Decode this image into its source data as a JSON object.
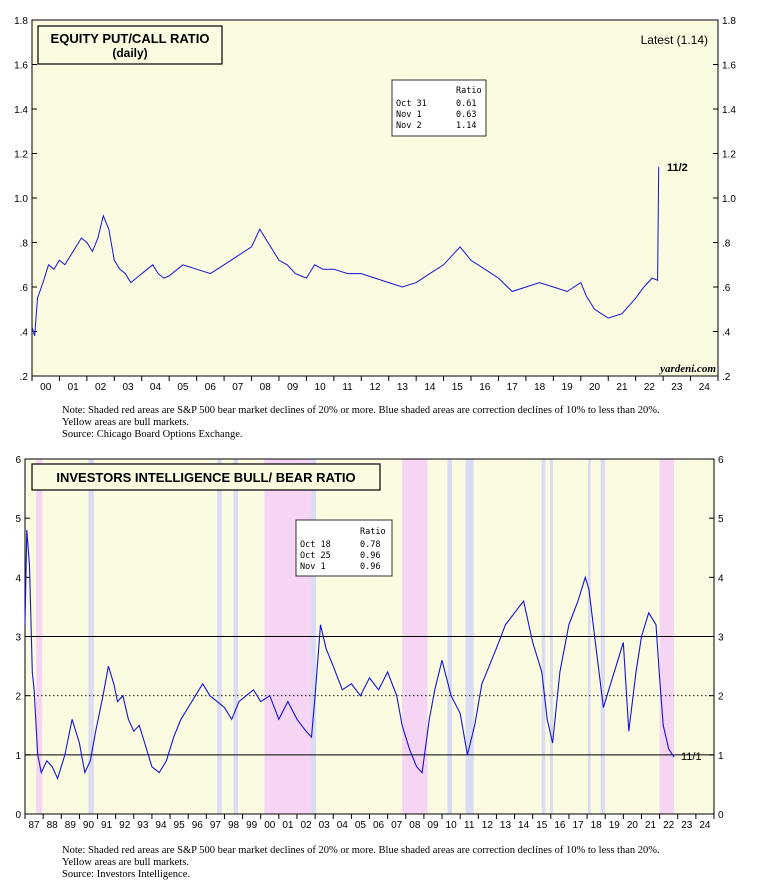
{
  "chart_data": [
    {
      "type": "line",
      "title": "EQUITY PUT/CALL RATIO",
      "subtitle": "(daily)",
      "latest_label": "Latest (1.14)",
      "end_annotation": "11/2",
      "source_credit": "yardeni.com",
      "x_tick_labels": [
        "00",
        "01",
        "02",
        "03",
        "04",
        "05",
        "06",
        "07",
        "08",
        "09",
        "10",
        "11",
        "12",
        "13",
        "14",
        "15",
        "16",
        "17",
        "18",
        "19",
        "20",
        "21",
        "22",
        "23",
        "24"
      ],
      "x_range": [
        2000.0,
        2025.0
      ],
      "y_ticks": [
        0.2,
        0.4,
        0.6,
        0.8,
        1.0,
        1.2,
        1.4,
        1.6,
        1.8
      ],
      "y_tick_labels": [
        ".2",
        ".4",
        ".6",
        ".8",
        "1.0",
        "1.2",
        "1.4",
        "1.6",
        "1.8"
      ],
      "ylim": [
        0.2,
        1.8
      ],
      "background_color": "#fbfbe1",
      "line_color": "#1414d6",
      "series": [
        {
          "x": [
            2000.0,
            2000.1,
            2000.2,
            2000.4,
            2000.6,
            2000.8,
            2001.0,
            2001.2,
            2001.4,
            2001.6,
            2001.8,
            2002.0,
            2002.2,
            2002.4,
            2002.6,
            2002.8,
            2003.0,
            2003.2,
            2003.4,
            2003.6,
            2003.8,
            2004.0,
            2004.2,
            2004.4,
            2004.6,
            2004.8,
            2005.0,
            2005.5,
            2006.0,
            2006.5,
            2007.0,
            2007.5,
            2008.0,
            2008.3,
            2008.6,
            2008.8,
            2009.0,
            2009.3,
            2009.6,
            2010.0,
            2010.3,
            2010.6,
            2011.0,
            2011.5,
            2012.0,
            2012.5,
            2013.0,
            2013.5,
            2014.0,
            2014.5,
            2015.0,
            2015.3,
            2015.6,
            2016.0,
            2016.5,
            2017.0,
            2017.5,
            2018.0,
            2018.5,
            2019.0,
            2019.5,
            2020.0,
            2020.2,
            2020.5,
            2021.0,
            2021.5,
            2022.0,
            2022.3,
            2022.6,
            2022.8,
            2022.84
          ],
          "y": [
            0.42,
            0.38,
            0.55,
            0.62,
            0.7,
            0.68,
            0.72,
            0.7,
            0.74,
            0.78,
            0.82,
            0.8,
            0.76,
            0.82,
            0.92,
            0.86,
            0.72,
            0.68,
            0.66,
            0.62,
            0.64,
            0.66,
            0.68,
            0.7,
            0.66,
            0.64,
            0.65,
            0.7,
            0.68,
            0.66,
            0.7,
            0.74,
            0.78,
            0.86,
            0.8,
            0.76,
            0.72,
            0.7,
            0.66,
            0.64,
            0.7,
            0.68,
            0.68,
            0.66,
            0.66,
            0.64,
            0.62,
            0.6,
            0.62,
            0.66,
            0.7,
            0.74,
            0.78,
            0.72,
            0.68,
            0.64,
            0.58,
            0.6,
            0.62,
            0.6,
            0.58,
            0.62,
            0.56,
            0.5,
            0.46,
            0.48,
            0.55,
            0.6,
            0.64,
            0.63,
            1.14
          ]
        }
      ],
      "inset_table": {
        "header": "Ratio",
        "rows": [
          {
            "date": "Oct 31",
            "value": "0.61"
          },
          {
            "date": "Nov  1",
            "value": "0.63"
          },
          {
            "date": "Nov  2",
            "value": "1.14"
          }
        ]
      },
      "notes": [
        "Note: Shaded red areas are S&P 500 bear market declines of 20% or more.  Blue shaded areas are correction declines of 10% to less than 20%.",
        "Yellow areas are bull markets.",
        "Source: Chicago Board Options Exchange."
      ]
    },
    {
      "type": "line",
      "title": "INVESTORS INTELLIGENCE BULL/ BEAR RATIO",
      "end_annotation": "11/1",
      "x_tick_labels": [
        "87",
        "88",
        "89",
        "90",
        "91",
        "92",
        "93",
        "94",
        "95",
        "96",
        "97",
        "98",
        "99",
        "00",
        "01",
        "02",
        "03",
        "04",
        "05",
        "06",
        "07",
        "08",
        "09",
        "10",
        "11",
        "12",
        "13",
        "14",
        "15",
        "16",
        "17",
        "18",
        "19",
        "20",
        "21",
        "22",
        "23",
        "24"
      ],
      "x_range": [
        1987.0,
        2025.0
      ],
      "y_ticks": [
        0,
        1,
        2,
        3,
        4,
        5,
        6
      ],
      "y_tick_labels": [
        "0",
        "1",
        "2",
        "3",
        "4",
        "5",
        "6"
      ],
      "ylim": [
        0,
        6
      ],
      "solid_ref_lines": [
        1,
        3
      ],
      "dotted_ref_lines": [
        2
      ],
      "background_color": "#fbfbe1",
      "line_color": "#1414d6",
      "bear_shading_color": "#f5d5f3",
      "correction_shading_color": "#d9dcf2",
      "bear_periods": [
        [
          1987.62,
          1987.95
        ],
        [
          2000.2,
          2002.78
        ],
        [
          2007.8,
          2009.2
        ],
        [
          2022.0,
          2022.8
        ]
      ],
      "correction_periods": [
        [
          1990.5,
          1990.8
        ],
        [
          1997.6,
          1997.85
        ],
        [
          1998.5,
          1998.75
        ],
        [
          2002.78,
          2003.05
        ],
        [
          2010.3,
          2010.55
        ],
        [
          2011.3,
          2011.75
        ],
        [
          2015.5,
          2015.7
        ],
        [
          2015.95,
          2016.12
        ],
        [
          2018.05,
          2018.2
        ],
        [
          2018.75,
          2018.98
        ]
      ],
      "series": [
        {
          "x": [
            1987.0,
            1987.1,
            1987.25,
            1987.4,
            1987.5,
            1987.7,
            1987.9,
            1988.2,
            1988.5,
            1988.8,
            1989.2,
            1989.6,
            1990.0,
            1990.3,
            1990.6,
            1990.9,
            1991.3,
            1991.6,
            1991.9,
            1992.1,
            1992.4,
            1992.7,
            1993.0,
            1993.3,
            1993.6,
            1994.0,
            1994.4,
            1994.8,
            1995.2,
            1995.6,
            1996.0,
            1996.4,
            1996.8,
            1997.2,
            1997.6,
            1998.0,
            1998.4,
            1998.8,
            1999.2,
            1999.6,
            2000.0,
            2000.5,
            2001.0,
            2001.5,
            2002.0,
            2002.5,
            2002.8,
            2003.0,
            2003.3,
            2003.6,
            2004.0,
            2004.5,
            2005.0,
            2005.5,
            2006.0,
            2006.5,
            2007.0,
            2007.5,
            2007.8,
            2008.2,
            2008.6,
            2008.9,
            2009.3,
            2009.6,
            2010.0,
            2010.5,
            2011.0,
            2011.4,
            2011.8,
            2012.2,
            2012.6,
            2013.0,
            2013.5,
            2014.0,
            2014.5,
            2015.0,
            2015.5,
            2015.8,
            2016.1,
            2016.5,
            2017.0,
            2017.5,
            2017.9,
            2018.1,
            2018.5,
            2018.9,
            2019.3,
            2019.7,
            2020.0,
            2020.3,
            2020.7,
            2021.0,
            2021.4,
            2021.8,
            2022.0,
            2022.2,
            2022.5,
            2022.8
          ],
          "y": [
            3.2,
            4.8,
            4.2,
            2.4,
            2.1,
            1.0,
            0.7,
            0.9,
            0.8,
            0.6,
            1.0,
            1.6,
            1.2,
            0.7,
            0.9,
            1.4,
            2.0,
            2.5,
            2.2,
            1.9,
            2.0,
            1.6,
            1.4,
            1.5,
            1.2,
            0.8,
            0.7,
            0.9,
            1.3,
            1.6,
            1.8,
            2.0,
            2.2,
            2.0,
            1.9,
            1.8,
            1.6,
            1.9,
            2.0,
            2.1,
            1.9,
            2.0,
            1.6,
            1.9,
            1.6,
            1.4,
            1.3,
            2.0,
            3.2,
            2.8,
            2.5,
            2.1,
            2.2,
            2.0,
            2.3,
            2.1,
            2.4,
            2.0,
            1.5,
            1.1,
            0.8,
            0.7,
            1.6,
            2.1,
            2.6,
            2.0,
            1.7,
            1.0,
            1.5,
            2.2,
            2.5,
            2.8,
            3.2,
            3.4,
            3.6,
            2.9,
            2.4,
            1.6,
            1.2,
            2.4,
            3.2,
            3.6,
            4.0,
            3.8,
            2.8,
            1.8,
            2.2,
            2.6,
            2.9,
            1.4,
            2.4,
            3.0,
            3.4,
            3.2,
            2.3,
            1.5,
            1.1,
            0.96
          ]
        }
      ],
      "inset_table": {
        "header": "Ratio",
        "rows": [
          {
            "date": "Oct 18",
            "value": "0.78"
          },
          {
            "date": "Oct 25",
            "value": "0.96"
          },
          {
            "date": "Nov  1",
            "value": "0.96"
          }
        ]
      },
      "notes": [
        "Note: Shaded red areas are S&P 500 bear market declines of 20% or more.  Blue shaded areas are correction declines of 10% to less than 20%.",
        "Yellow areas are bull markets.",
        "Source: Investors Intelligence."
      ]
    }
  ]
}
